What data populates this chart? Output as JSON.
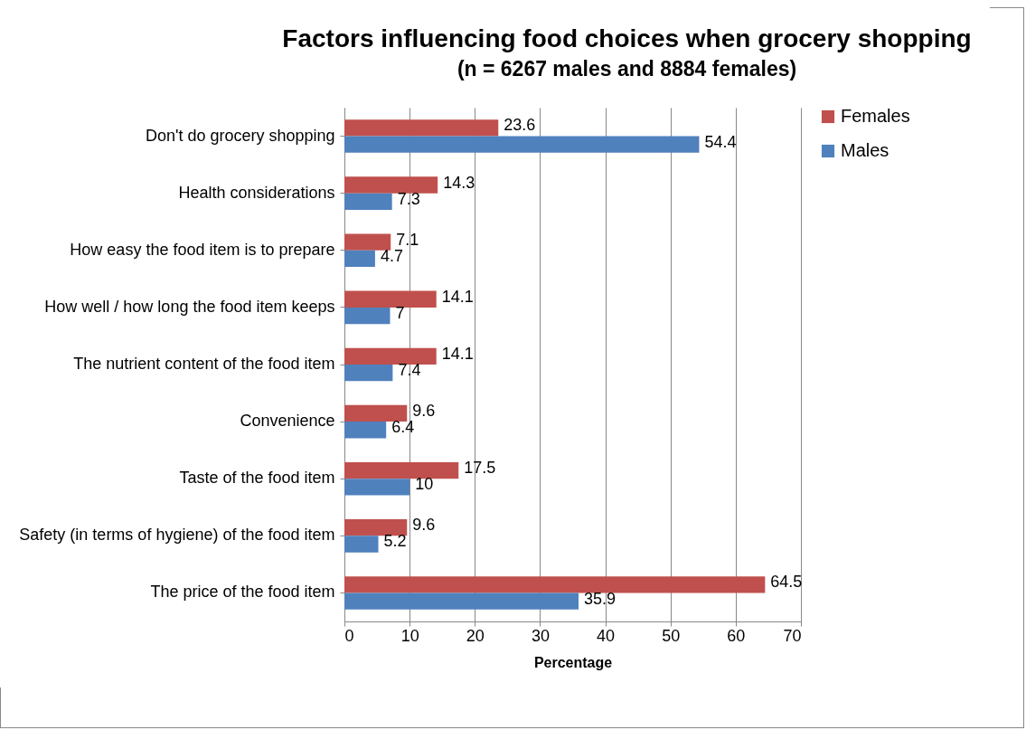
{
  "chart_data": {
    "type": "bar",
    "orientation": "horizontal",
    "title": "Factors influencing food choices when grocery shopping",
    "subtitle": "(n = 6267 males and 8884 females)",
    "xlabel": "Percentage",
    "categories": [
      "Don't do grocery shopping",
      "Health considerations",
      "How easy the food item is to prepare",
      "How well / how long the food item keeps",
      "The nutrient content of the food item",
      "Convenience",
      "Taste of the food item",
      "Safety (in terms of hygiene) of the food item",
      "The price of the food item"
    ],
    "series": [
      {
        "name": "Females",
        "color": "#c0504d",
        "values": [
          23.6,
          14.3,
          7.1,
          14.1,
          14.1,
          9.6,
          17.5,
          9.6,
          64.5
        ]
      },
      {
        "name": "Males",
        "color": "#4f81bd",
        "values": [
          54.4,
          7.3,
          4.7,
          7,
          7.4,
          6.4,
          10,
          5.2,
          35.9
        ]
      }
    ],
    "xlim": [
      0,
      70
    ],
    "xticks": [
      0,
      10,
      20,
      30,
      40,
      50,
      60,
      70
    ],
    "grid": "x",
    "legend": "right",
    "data_labels": true
  }
}
